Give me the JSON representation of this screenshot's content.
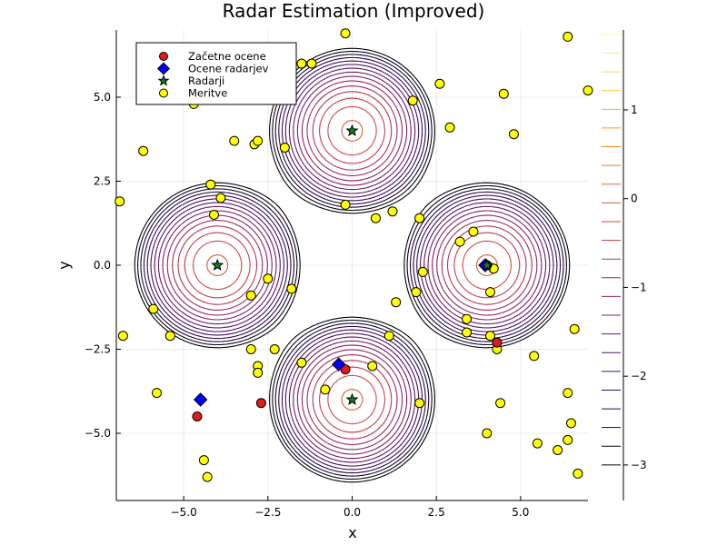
{
  "chart_data": {
    "type": "scatter",
    "title": "Radar Estimation (Improved)",
    "xlabel": "x",
    "ylabel": "y",
    "xlim": [
      -7,
      7
    ],
    "ylim": [
      -7,
      7
    ],
    "x_ticks": [
      -5,
      -2.5,
      0,
      2.5,
      5
    ],
    "x_tick_labels": [
      "−5.0",
      "−2.5",
      "0.0",
      "2.5",
      "5.0"
    ],
    "y_ticks": [
      -5,
      -2.5,
      0,
      2.5,
      5
    ],
    "y_tick_labels": [
      "−5.0",
      "−2.5",
      "0.0",
      "2.5",
      "5.0"
    ],
    "grid": true,
    "legend_position": "top-left",
    "contour": {
      "function": "log sum of Gaussian bumps centered at the radars",
      "level_min": -3.0,
      "level_max": 1.85,
      "colorbar_ticks": [
        1,
        0,
        -1,
        -2,
        -3
      ],
      "colorbar_tick_labels": [
        "1",
        "0",
        "−1",
        "−2",
        "−3"
      ],
      "colormap": [
        "#000004",
        "#320a5e",
        "#781c6d",
        "#bc3754",
        "#ed6925",
        "#fbb61a",
        "#fcffa4"
      ]
    },
    "series": [
      {
        "name": "Začetne ocene",
        "marker": "circle",
        "color": "#e31a1c",
        "points": [
          [
            -4.6,
            -4.5
          ],
          [
            -2.7,
            -4.1
          ],
          [
            -0.2,
            -3.1
          ],
          [
            4.3,
            -2.3
          ],
          [
            4.0,
            0.0
          ]
        ]
      },
      {
        "name": "Ocene radarjev",
        "marker": "diamond",
        "color": "#0000ff",
        "points": [
          [
            -4.5,
            -4.0
          ],
          [
            -0.4,
            -2.95
          ],
          [
            3.95,
            0.0
          ]
        ]
      },
      {
        "name": "Radarji",
        "marker": "star",
        "color": "#1a7a1a",
        "points": [
          [
            0,
            4
          ],
          [
            -4,
            0
          ],
          [
            4,
            0
          ],
          [
            0,
            -4
          ]
        ]
      },
      {
        "name": "Meritve",
        "marker": "circle",
        "color": "#ffff00",
        "points": [
          [
            -0.2,
            6.9
          ],
          [
            -1.5,
            6.0
          ],
          [
            -1.2,
            6.0
          ],
          [
            6.4,
            6.8
          ],
          [
            7.0,
            5.2
          ],
          [
            4.5,
            5.1
          ],
          [
            2.6,
            5.4
          ],
          [
            -4.7,
            4.8
          ],
          [
            1.8,
            4.9
          ],
          [
            2.9,
            4.1
          ],
          [
            4.8,
            3.9
          ],
          [
            -6.2,
            3.4
          ],
          [
            -3.5,
            3.7
          ],
          [
            -2.9,
            3.6
          ],
          [
            -2.8,
            3.7
          ],
          [
            -2.0,
            3.5
          ],
          [
            -6.9,
            1.9
          ],
          [
            -4.2,
            2.4
          ],
          [
            -3.9,
            2.0
          ],
          [
            -0.2,
            1.8
          ],
          [
            0.7,
            1.4
          ],
          [
            1.2,
            1.6
          ],
          [
            2.0,
            1.4
          ],
          [
            3.6,
            1.0
          ],
          [
            -4.1,
            1.5
          ],
          [
            3.2,
            0.7
          ],
          [
            4.2,
            -0.1
          ],
          [
            2.1,
            -0.2
          ],
          [
            -2.5,
            -0.4
          ],
          [
            -1.8,
            -0.7
          ],
          [
            -3.0,
            -0.9
          ],
          [
            4.1,
            -0.8
          ],
          [
            1.9,
            -0.8
          ],
          [
            1.3,
            -1.1
          ],
          [
            -5.9,
            -1.3
          ],
          [
            3.4,
            -1.6
          ],
          [
            6.6,
            -1.9
          ],
          [
            -6.8,
            -2.1
          ],
          [
            -5.4,
            -2.1
          ],
          [
            1.1,
            -2.1
          ],
          [
            3.4,
            -2.0
          ],
          [
            4.1,
            -2.1
          ],
          [
            -3.0,
            -2.5
          ],
          [
            -2.3,
            -2.5
          ],
          [
            4.3,
            -2.5
          ],
          [
            5.4,
            -2.7
          ],
          [
            -2.8,
            -3.0
          ],
          [
            -1.5,
            -2.9
          ],
          [
            0.6,
            -3.0
          ],
          [
            -2.8,
            -3.2
          ],
          [
            -0.8,
            -3.7
          ],
          [
            6.4,
            -3.8
          ],
          [
            -5.8,
            -3.8
          ],
          [
            2.0,
            -4.1
          ],
          [
            4.4,
            -4.1
          ],
          [
            6.5,
            -4.7
          ],
          [
            4.0,
            -5.0
          ],
          [
            6.4,
            -5.2
          ],
          [
            5.5,
            -5.3
          ],
          [
            6.1,
            -5.5
          ],
          [
            -4.4,
            -5.8
          ],
          [
            6.7,
            -6.2
          ],
          [
            -4.3,
            -6.3
          ]
        ]
      }
    ]
  }
}
